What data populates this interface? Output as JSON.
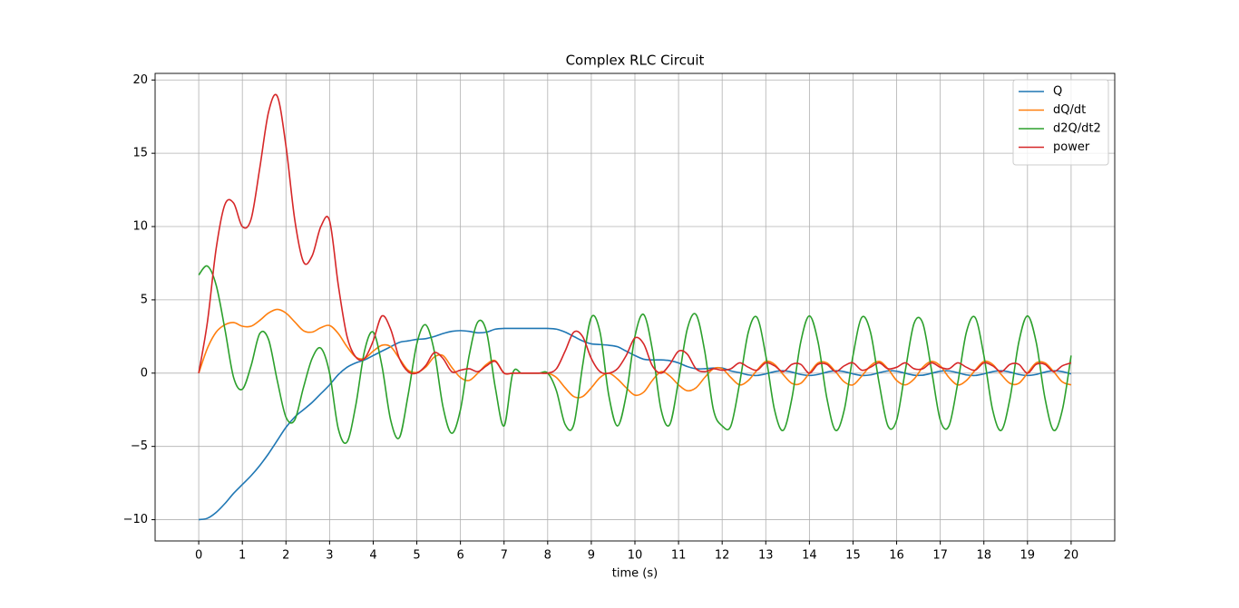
{
  "chart_data": {
    "type": "line",
    "title": "Complex RLC Circuit",
    "x_label": "time (s)",
    "x": [
      0,
      0.2,
      0.4,
      0.6,
      0.8,
      1,
      1.2,
      1.4,
      1.6,
      1.8,
      2,
      2.2,
      2.4,
      2.6,
      2.8,
      3,
      3.2,
      3.4,
      3.6,
      3.8,
      4,
      4.2,
      4.4,
      4.6,
      4.8,
      5,
      5.2,
      5.4,
      5.6,
      5.8,
      6,
      6.2,
      6.4,
      6.6,
      6.8,
      7,
      7.2,
      7.4,
      7.6,
      7.8,
      8,
      8.2,
      8.4,
      8.6,
      8.8,
      9,
      9.2,
      9.4,
      9.6,
      9.8,
      10,
      10.2,
      10.4,
      10.6,
      10.8,
      11,
      11.2,
      11.4,
      11.6,
      11.8,
      12,
      12.2,
      12.4,
      12.6,
      12.8,
      13,
      13.2,
      13.4,
      13.6,
      13.8,
      14,
      14.2,
      14.4,
      14.6,
      14.8,
      15,
      15.2,
      15.4,
      15.6,
      15.8,
      16,
      16.2,
      16.4,
      16.6,
      16.8,
      17,
      17.2,
      17.4,
      17.6,
      17.8,
      18,
      18.2,
      18.4,
      18.6,
      18.8,
      19,
      19.2,
      19.4,
      19.6,
      19.8,
      20
    ],
    "series": [
      {
        "name": "Q",
        "color": "#1f77b4",
        "values": [
          -10,
          -9.9,
          -9.5,
          -8.9,
          -8.2,
          -7.6,
          -7.0,
          -6.3,
          -5.5,
          -4.6,
          -3.7,
          -3.0,
          -2.5,
          -2.0,
          -1.4,
          -0.8,
          -0.1,
          0.4,
          0.7,
          0.9,
          1.2,
          1.5,
          1.8,
          2.1,
          2.2,
          2.3,
          2.35,
          2.5,
          2.7,
          2.85,
          2.9,
          2.85,
          2.75,
          2.8,
          3.0,
          3.05,
          3.05,
          3.05,
          3.05,
          3.05,
          3.05,
          3.0,
          2.8,
          2.5,
          2.2,
          2.0,
          1.95,
          1.9,
          1.8,
          1.5,
          1.2,
          0.95,
          0.9,
          0.9,
          0.85,
          0.7,
          0.45,
          0.3,
          0.3,
          0.35,
          0.35,
          0.15,
          0.03,
          -0.12,
          -0.16,
          -0.05,
          0.1,
          0.16,
          0.07,
          -0.09,
          -0.16,
          -0.09,
          0.07,
          0.16,
          0.1,
          -0.05,
          -0.16,
          -0.12,
          0.03,
          0.15,
          0.13,
          -0.01,
          -0.14,
          -0.14,
          -0.01,
          0.13,
          0.15,
          0.03,
          -0.12,
          -0.16,
          -0.05,
          0.1,
          0.16,
          0.07,
          -0.09,
          -0.16,
          -0.09,
          0.07,
          0.16,
          0.1,
          -0.05
        ]
      },
      {
        "name": "dQ/dt",
        "color": "#ff7f0e",
        "values": [
          0,
          1.7,
          2.8,
          3.3,
          3.45,
          3.2,
          3.2,
          3.6,
          4.1,
          4.35,
          4.1,
          3.5,
          2.9,
          2.8,
          3.1,
          3.25,
          2.7,
          1.8,
          1.1,
          1.0,
          1.5,
          1.9,
          1.8,
          1.0,
          0.2,
          0.05,
          0.4,
          1.1,
          1.2,
          0.4,
          -0.3,
          -0.5,
          0.0,
          0.6,
          0.85,
          0,
          0,
          0,
          0,
          0,
          0,
          -0.3,
          -1.0,
          -1.6,
          -1.6,
          -1.0,
          -0.3,
          0.0,
          -0.4,
          -1.0,
          -1.5,
          -1.3,
          -0.5,
          0.1,
          -0.2,
          -0.8,
          -1.2,
          -1.0,
          -0.3,
          0.3,
          0.3,
          -0.3,
          -0.8,
          -0.5,
          0.2,
          0.8,
          0.6,
          -0.1,
          -0.7,
          -0.7,
          0,
          0.7,
          0.7,
          0.1,
          -0.6,
          -0.8,
          -0.2,
          0.5,
          0.8,
          0.3,
          -0.5,
          -0.8,
          -0.4,
          0.4,
          0.8,
          0.5,
          -0.3,
          -0.8,
          -0.5,
          0.2,
          0.8,
          0.6,
          -0.1,
          -0.7,
          -0.7,
          0,
          0.7,
          0.7,
          0.1,
          -0.6,
          -0.8
        ]
      },
      {
        "name": "d2Q/dt2",
        "color": "#2ca02c",
        "values": [
          6.7,
          7.3,
          6.0,
          3.0,
          -0.3,
          -1.1,
          0.5,
          2.7,
          2.3,
          -0.5,
          -3.0,
          -3.2,
          -1.0,
          1.0,
          1.7,
          0.0,
          -3.8,
          -4.7,
          -2.2,
          1.5,
          2.8,
          0.5,
          -3.2,
          -4.4,
          -1.5,
          2.0,
          3.3,
          1.5,
          -2.3,
          -4.1,
          -2.5,
          1.2,
          3.5,
          2.8,
          -1.0,
          -3.6,
          0,
          0,
          0,
          0,
          0,
          -1.2,
          -3.5,
          -3.5,
          0.5,
          3.8,
          2.8,
          -1.5,
          -3.6,
          -1.5,
          2.5,
          4.0,
          1.6,
          -2.5,
          -3.5,
          -0.5,
          3.0,
          4.0,
          1.5,
          -2.5,
          -3.6,
          -3.6,
          -0.7,
          2.8,
          3.8,
          1.2,
          -2.5,
          -3.9,
          -1.7,
          2.1,
          3.9,
          2.1,
          -1.7,
          -3.9,
          -2.5,
          1.2,
          3.8,
          2.8,
          -0.7,
          -3.6,
          -3.2,
          0.2,
          3.4,
          3.4,
          0.2,
          -3.2,
          -3.6,
          -0.7,
          2.8,
          3.8,
          1.2,
          -2.5,
          -3.9,
          -1.7,
          2.1,
          3.9,
          2.1,
          -1.7,
          -3.9,
          -2.5,
          1.2
        ]
      },
      {
        "name": "power",
        "color": "#d62728",
        "values": [
          0,
          3.5,
          8.5,
          11.5,
          11.6,
          10.0,
          10.5,
          14.0,
          17.8,
          18.9,
          15.5,
          10.5,
          7.6,
          8.0,
          10.0,
          10.4,
          6.0,
          2.5,
          1.1,
          1.0,
          2.2,
          3.9,
          3.0,
          1.0,
          0.1,
          0.0,
          0.5,
          1.4,
          1.0,
          0.1,
          0.2,
          0.3,
          0.1,
          0.5,
          0.8,
          0,
          0,
          0,
          0,
          0,
          0,
          0.3,
          1.5,
          2.8,
          2.5,
          1.0,
          0.1,
          0.0,
          0.3,
          1.2,
          2.4,
          2.0,
          0.5,
          0.0,
          0.6,
          1.5,
          1.3,
          0.3,
          0.1,
          0.3,
          0.2,
          0.3,
          0.7,
          0.4,
          0.2,
          0.7,
          0.5,
          0.1,
          0.6,
          0.6,
          0,
          0.6,
          0.6,
          0.1,
          0.5,
          0.7,
          0.2,
          0.4,
          0.7,
          0.3,
          0.4,
          0.7,
          0.3,
          0.3,
          0.7,
          0.4,
          0.3,
          0.7,
          0.4,
          0.2,
          0.7,
          0.5,
          0.1,
          0.6,
          0.6,
          0,
          0.6,
          0.6,
          0.1,
          0.5,
          0.7
        ]
      }
    ],
    "xlim": [
      -1,
      21
    ],
    "ylim": [
      -11.45,
      20.45
    ],
    "xticks": [
      0,
      1,
      2,
      3,
      4,
      5,
      6,
      7,
      8,
      9,
      10,
      11,
      12,
      13,
      14,
      15,
      16,
      17,
      18,
      19,
      20
    ],
    "yticks": [
      {
        "value": -10,
        "label": "−10"
      },
      {
        "value": -5,
        "label": "−5"
      },
      0,
      5,
      10,
      15,
      20
    ],
    "grid": true,
    "legend": "upper right"
  }
}
